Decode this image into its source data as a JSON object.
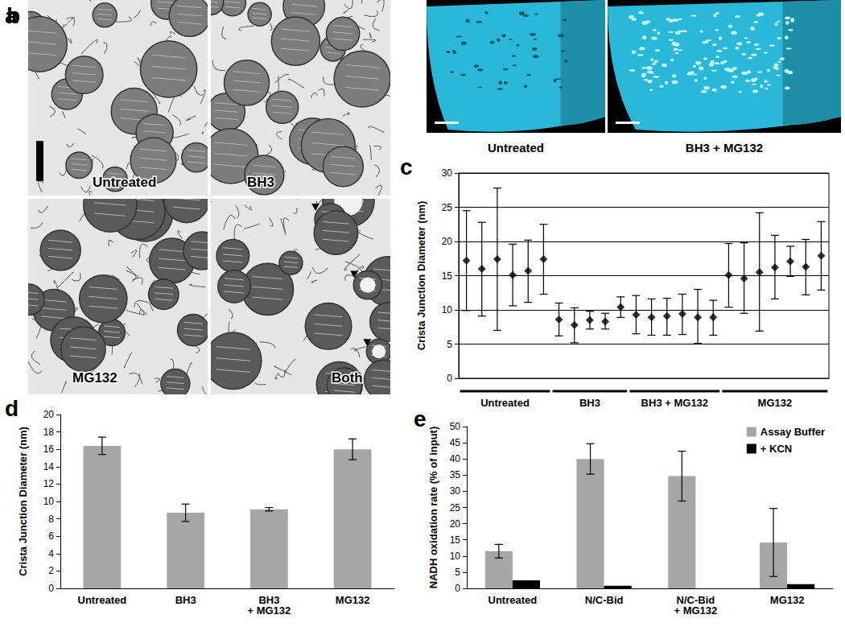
{
  "figure_panels": [
    {
      "panel_label": "a",
      "images": [
        "Untreated",
        "BH3",
        "MG132",
        "Both"
      ]
    },
    {
      "panel_label": "b",
      "images": [
        "Untreated",
        "BH3 + MG132"
      ]
    }
  ],
  "chart_data": [
    {
      "panel_label": "c",
      "type": "scatter",
      "y_label": "Crista Junction Diameter (nm)",
      "ylim": [
        0,
        30
      ],
      "yticks": [
        0,
        5,
        10,
        15,
        20,
        25,
        30
      ],
      "grid": true,
      "marker": "diamond",
      "color": "#000000",
      "groups": [
        {
          "name": "Untreated",
          "values": [
            17.2,
            16.0,
            17.4,
            15.1,
            15.7,
            17.4
          ],
          "lower": [
            9.9,
            9.1,
            7.0,
            10.6,
            11.1,
            12.3
          ],
          "upper": [
            24.5,
            22.8,
            27.8,
            19.6,
            20.2,
            22.5
          ]
        },
        {
          "name": "BH3",
          "values": [
            8.6,
            7.8,
            8.5,
            8.3,
            10.4
          ],
          "lower": [
            6.2,
            5.2,
            7.2,
            7.2,
            8.9
          ],
          "upper": [
            11.0,
            10.3,
            9.8,
            9.5,
            11.9
          ]
        },
        {
          "name": "BH3 + MG132",
          "values": [
            9.3,
            8.9,
            9.1,
            9.4,
            8.9,
            8.9
          ],
          "lower": [
            6.5,
            6.3,
            6.3,
            6.4,
            5.1,
            6.3
          ],
          "upper": [
            12.1,
            11.6,
            11.7,
            12.3,
            13.0,
            11.4
          ]
        },
        {
          "name": "MG132",
          "values": [
            15.1,
            14.6,
            15.5,
            16.2,
            17.1,
            16.3,
            17.9
          ],
          "lower": [
            10.4,
            9.5,
            6.9,
            11.6,
            14.9,
            12.2,
            12.9
          ],
          "upper": [
            19.7,
            19.8,
            24.2,
            20.9,
            19.3,
            20.3,
            22.9
          ]
        }
      ]
    },
    {
      "panel_label": "d",
      "type": "bar",
      "y_label": "Crista Junction Diameter (nm)",
      "categories": [
        "Untreated",
        "BH3",
        "BH3\n+ MG132",
        "MG132"
      ],
      "values": [
        16.4,
        8.7,
        9.1,
        16.0
      ],
      "errors": [
        1.0,
        1.0,
        0.2,
        1.2
      ],
      "color": "#a6a6a6",
      "ylim": [
        0,
        20
      ],
      "yticks": [
        0,
        2,
        4,
        6,
        8,
        10,
        12,
        14,
        16,
        18,
        20
      ],
      "grid": false
    },
    {
      "panel_label": "e",
      "type": "bar",
      "y_label": "NADH oxidation rate (% of input)",
      "categories": [
        "Untreated",
        "N/C-Bid",
        "N/C-Bid\n+ MG132",
        "MG132"
      ],
      "series": [
        {
          "name": "Assay Buffer",
          "color": "#a6a6a6",
          "values": [
            11.5,
            40.0,
            34.7,
            14.2
          ],
          "errors": [
            2.1,
            4.7,
            7.7,
            10.5
          ]
        },
        {
          "name": "+ KCN",
          "color": "#000000",
          "values": [
            2.5,
            0.8,
            0,
            1.3
          ],
          "errors": [
            null,
            null,
            null,
            null
          ]
        }
      ],
      "ylim": [
        0,
        50
      ],
      "yticks": [
        0,
        5,
        10,
        15,
        20,
        25,
        30,
        35,
        40,
        45,
        50
      ],
      "grid": false,
      "legend": "top-right"
    }
  ]
}
